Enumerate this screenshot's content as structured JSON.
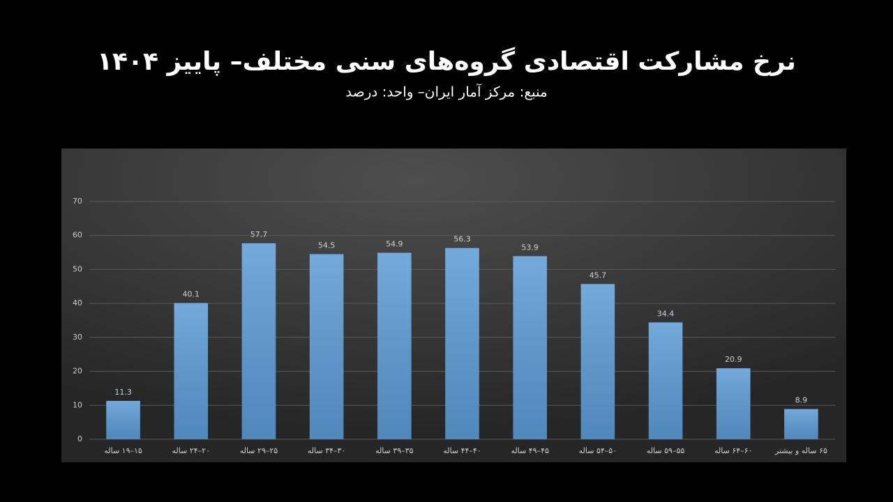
{
  "chart_data": {
    "type": "bar",
    "title": "نرخ مشارکت اقتصادی گروه‌های سنی مختلف– پاییز ۱۴۰۴",
    "subtitle": "منبع: مرکز آمار ایران– واحد: درصد",
    "categories": [
      "۱۵–۱۹ ساله",
      "۲۰–۲۴ ساله",
      "۲۵–۲۹ ساله",
      "۳۰–۳۴ ساله",
      "۳۵–۳۹ ساله",
      "۴۰–۴۴ ساله",
      "۴۵–۴۹ ساله",
      "۵۰–۵۴ ساله",
      "۵۵–۵۹ ساله",
      "۶۰–۶۴ ساله",
      "۶۵ ساله و بیشتر"
    ],
    "values": [
      11.3,
      40.1,
      57.7,
      54.5,
      54.9,
      56.3,
      53.9,
      45.7,
      34.4,
      20.9,
      8.9
    ],
    "color": "#5b9bd5",
    "ylim": [
      0,
      70
    ],
    "yticks": [
      0,
      10,
      20,
      30,
      40,
      50,
      60,
      70
    ],
    "grid": true
  }
}
